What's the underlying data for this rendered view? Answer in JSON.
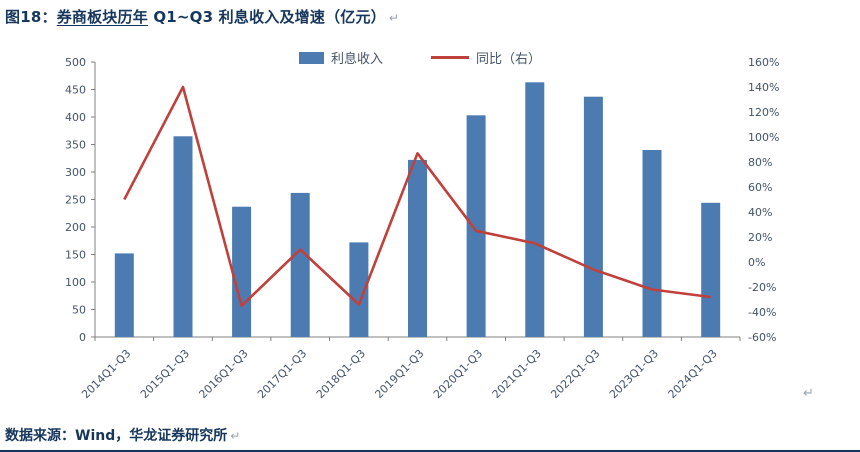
{
  "title": {
    "prefix": "图18：",
    "underlined": "券商板块历年",
    "rest": " Q1~Q3 利息收入及增速（亿元）",
    "return_mark": "↵"
  },
  "legend": [
    {
      "label": "利息收入",
      "type": "bar",
      "color": "#4C7BB2"
    },
    {
      "label": "同比（右）",
      "type": "line",
      "color": "#C0403C"
    }
  ],
  "chart_data": {
    "type": "bar+line combo",
    "categories": [
      "2014Q1-Q3",
      "2015Q1-Q3",
      "2016Q1-Q3",
      "2017Q1-Q3",
      "2018Q1-Q3",
      "2019Q1-Q3",
      "2020Q1-Q3",
      "2021Q1-Q3",
      "2022Q1-Q3",
      "2023Q1-Q3",
      "2024Q1-Q3"
    ],
    "series": [
      {
        "name": "利息收入",
        "type": "bar",
        "axis": "left",
        "color": "#4C7BB2",
        "values": [
          152,
          365,
          237,
          262,
          172,
          322,
          403,
          463,
          437,
          340,
          244
        ]
      },
      {
        "name": "同比（右）",
        "type": "line",
        "axis": "right",
        "color": "#C0403C",
        "values": [
          50,
          140,
          -35,
          10,
          -34,
          87,
          25,
          15,
          -6,
          -22,
          -28
        ]
      }
    ],
    "left_axis": {
      "min": 0,
      "max": 500,
      "step": 50,
      "suffix": ""
    },
    "right_axis": {
      "min": -60,
      "max": 160,
      "step": 20,
      "suffix": "%"
    },
    "grid": false,
    "legend_position": "top-center"
  },
  "footer": {
    "chart_return_mark": "↵"
  },
  "source": {
    "text": "数据来源：Wind，华龙证券研究所",
    "return_mark": "↵"
  }
}
